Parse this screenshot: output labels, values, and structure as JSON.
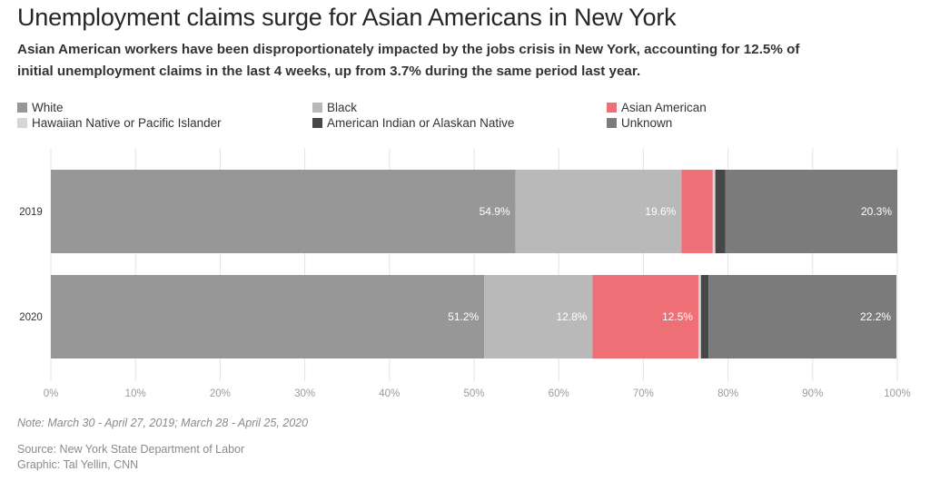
{
  "title": "Unemployment claims surge for Asian Americans in New York",
  "subtitle": "Asian American workers have been disproportionately impacted by the jobs crisis in New York, accounting for 12.5% of initial unemployment claims in the last 4 weeks, up from 3.7% during the same period last year.",
  "note": "Note: March 30 - April 27, 2019; March 28 - April 25, 2020",
  "source": "Source: New York State Department of Labor",
  "credit": "Graphic: Tal Yellin, CNN",
  "legend": [
    {
      "name": "White",
      "color": "#979797"
    },
    {
      "name": "Black",
      "color": "#b9b9b9"
    },
    {
      "name": "Asian American",
      "color": "#ef6f77"
    },
    {
      "name": "Hawaiian Native or Pacific Islander",
      "color": "#d6d6d6"
    },
    {
      "name": "American Indian or Alaskan Native",
      "color": "#474747"
    },
    {
      "name": "Unknown",
      "color": "#7b7b7b"
    }
  ],
  "chart_data": {
    "type": "bar",
    "orientation": "horizontal",
    "stacked": true,
    "categories": [
      "2019",
      "2020"
    ],
    "series": [
      {
        "name": "White",
        "color": "#979797",
        "values": [
          54.9,
          51.2
        ],
        "labels": [
          "54.9%",
          "51.2%"
        ]
      },
      {
        "name": "Black",
        "color": "#b9b9b9",
        "values": [
          19.6,
          12.8
        ],
        "labels": [
          "19.6%",
          "12.8%"
        ]
      },
      {
        "name": "Asian American",
        "color": "#ef6f77",
        "values": [
          3.7,
          12.5
        ],
        "labels": [
          "",
          "12.5%"
        ]
      },
      {
        "name": "Hawaiian Native or Pacific Islander",
        "color": "#d6d6d6",
        "values": [
          0.3,
          0.3
        ],
        "labels": [
          "",
          ""
        ]
      },
      {
        "name": "American Indian or Alaskan Native",
        "color": "#474747",
        "values": [
          1.2,
          0.9
        ],
        "labels": [
          "",
          ""
        ]
      },
      {
        "name": "Unknown",
        "color": "#7b7b7b",
        "values": [
          20.3,
          22.2
        ],
        "labels": [
          "20.3%",
          "22.2%"
        ]
      }
    ],
    "xlim": [
      0,
      100
    ],
    "xticks": [
      "0%",
      "10%",
      "20%",
      "30%",
      "40%",
      "50%",
      "60%",
      "70%",
      "80%",
      "90%",
      "100%"
    ],
    "grid": true,
    "legend_position": "top"
  }
}
